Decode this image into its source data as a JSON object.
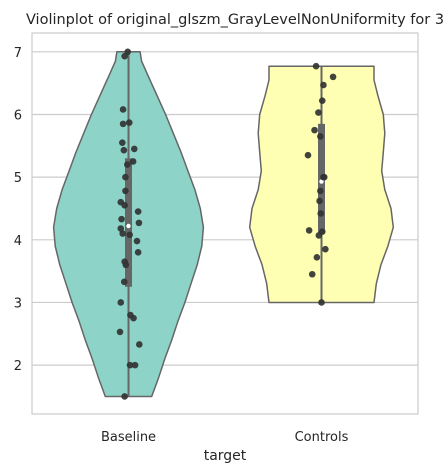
{
  "chart_data": {
    "type": "violin",
    "title": "Violinplot of original_glszm_GrayLevelNonUniformity for 3",
    "xlabel": "target",
    "ylabel": "",
    "categories": [
      "Baseline",
      "Controls"
    ],
    "ylim": [
      1.22,
      7.3
    ],
    "yticks": [
      2,
      3,
      4,
      5,
      6,
      7
    ],
    "grid": "horizontal",
    "groups": [
      {
        "category": "Baseline",
        "color": "#8dd3c7",
        "min": 1.5,
        "max": 7.0,
        "q1": 3.25,
        "median": 4.22,
        "q3": 5.3,
        "density": [
          [
            1.5,
            0.3
          ],
          [
            1.8,
            0.39
          ],
          [
            2.1,
            0.47
          ],
          [
            2.4,
            0.56
          ],
          [
            2.7,
            0.64
          ],
          [
            3.0,
            0.73
          ],
          [
            3.3,
            0.81
          ],
          [
            3.6,
            0.89
          ],
          [
            3.9,
            0.95
          ],
          [
            4.2,
            0.97
          ],
          [
            4.5,
            0.93
          ],
          [
            4.8,
            0.86
          ],
          [
            5.1,
            0.77
          ],
          [
            5.4,
            0.68
          ],
          [
            5.7,
            0.58
          ],
          [
            6.0,
            0.48
          ],
          [
            6.3,
            0.37
          ],
          [
            6.6,
            0.26
          ],
          [
            6.85,
            0.17
          ],
          [
            7.0,
            0.15
          ]
        ],
        "points": [
          {
            "y": 7.0,
            "j": -0.02
          },
          {
            "y": 6.93,
            "j": -0.1
          },
          {
            "y": 6.08,
            "j": -0.14
          },
          {
            "y": 5.87,
            "j": 0.02
          },
          {
            "y": 5.85,
            "j": -0.14
          },
          {
            "y": 5.55,
            "j": -0.16
          },
          {
            "y": 5.45,
            "j": 0.15
          },
          {
            "y": 5.43,
            "j": -0.12
          },
          {
            "y": 5.25,
            "j": 0.12
          },
          {
            "y": 5.2,
            "j": -0.03
          },
          {
            "y": 5.0,
            "j": -0.08
          },
          {
            "y": 4.78,
            "j": -0.08
          },
          {
            "y": 4.6,
            "j": -0.2
          },
          {
            "y": 4.55,
            "j": -0.1
          },
          {
            "y": 4.45,
            "j": 0.25
          },
          {
            "y": 4.33,
            "j": -0.18
          },
          {
            "y": 4.27,
            "j": 0.27
          },
          {
            "y": 4.18,
            "j": -0.2
          },
          {
            "y": 4.1,
            "j": -0.15
          },
          {
            "y": 4.08,
            "j": 0.03
          },
          {
            "y": 3.98,
            "j": 0.22
          },
          {
            "y": 3.8,
            "j": 0.25
          },
          {
            "y": 3.65,
            "j": -0.1
          },
          {
            "y": 3.6,
            "j": -0.07
          },
          {
            "y": 3.33,
            "j": -0.11
          },
          {
            "y": 3.0,
            "j": -0.2
          },
          {
            "y": 2.8,
            "j": 0.05
          },
          {
            "y": 2.75,
            "j": 0.13
          },
          {
            "y": 2.53,
            "j": -0.22
          },
          {
            "y": 2.33,
            "j": 0.28
          },
          {
            "y": 2.0,
            "j": 0.04
          },
          {
            "y": 2.0,
            "j": 0.17
          },
          {
            "y": 1.5,
            "j": -0.1
          }
        ]
      },
      {
        "category": "Controls",
        "color": "#ffffb3",
        "min": 3.0,
        "max": 6.77,
        "q1": 4.1,
        "median": 4.93,
        "q3": 5.85,
        "density": [
          [
            3.0,
            0.68
          ],
          [
            3.3,
            0.71
          ],
          [
            3.6,
            0.77
          ],
          [
            3.9,
            0.86
          ],
          [
            4.2,
            0.93
          ],
          [
            4.5,
            0.9
          ],
          [
            4.8,
            0.82
          ],
          [
            5.1,
            0.78
          ],
          [
            5.4,
            0.8
          ],
          [
            5.7,
            0.82
          ],
          [
            6.0,
            0.8
          ],
          [
            6.3,
            0.73
          ],
          [
            6.55,
            0.68
          ],
          [
            6.77,
            0.68
          ]
        ],
        "points": [
          {
            "y": 6.77,
            "j": -0.14
          },
          {
            "y": 6.6,
            "j": 0.3
          },
          {
            "y": 6.47,
            "j": 0.05
          },
          {
            "y": 6.22,
            "j": 0.02
          },
          {
            "y": 6.03,
            "j": -0.08
          },
          {
            "y": 5.75,
            "j": -0.18
          },
          {
            "y": 5.65,
            "j": -0.03
          },
          {
            "y": 5.35,
            "j": -0.35
          },
          {
            "y": 5.0,
            "j": 0.07
          },
          {
            "y": 5.0,
            "j": 0.05
          },
          {
            "y": 4.78,
            "j": -0.03
          },
          {
            "y": 4.62,
            "j": -0.05
          },
          {
            "y": 4.42,
            "j": -0.02
          },
          {
            "y": 4.15,
            "j": -0.32
          },
          {
            "y": 4.13,
            "j": 0.02
          },
          {
            "y": 4.07,
            "j": -0.07
          },
          {
            "y": 3.85,
            "j": 0.1
          },
          {
            "y": 3.72,
            "j": -0.12
          },
          {
            "y": 3.45,
            "j": -0.24
          },
          {
            "y": 3.0,
            "j": 0.0
          }
        ]
      }
    ]
  }
}
